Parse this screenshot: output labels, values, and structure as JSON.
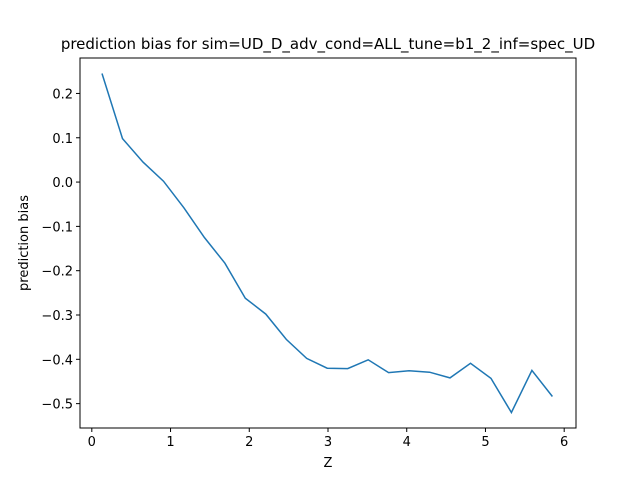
{
  "chart_data": {
    "type": "line",
    "title": "prediction bias for sim=UD_D_adv_cond=ALL_tune=b1_2_inf=spec_UD",
    "xlabel": "Z",
    "ylabel": "prediction bias",
    "xlim": [
      -0.15,
      6.15
    ],
    "ylim": [
      -0.555,
      0.28
    ],
    "xticks": [
      0,
      1,
      2,
      3,
      4,
      5,
      6
    ],
    "xtick_labels": [
      "0",
      "1",
      "2",
      "3",
      "4",
      "5",
      "6"
    ],
    "yticks": [
      0.2,
      0.1,
      0.0,
      -0.1,
      -0.2,
      -0.3,
      -0.4,
      -0.5
    ],
    "ytick_labels": [
      "0.2",
      "0.1",
      "0.0",
      "−0.1",
      "−0.2",
      "−0.3",
      "−0.4",
      "−0.5"
    ],
    "grid": false,
    "line_color": "#1f77b4",
    "series": [
      {
        "x": [
          0.13,
          0.39,
          0.65,
          0.91,
          1.17,
          1.43,
          1.69,
          1.95,
          2.21,
          2.47,
          2.73,
          2.99,
          3.25,
          3.51,
          3.77,
          4.03,
          4.29,
          4.55,
          4.81,
          5.07,
          5.33,
          5.59,
          5.85
        ],
        "values": [
          0.245,
          0.098,
          0.045,
          0.002,
          -0.058,
          -0.125,
          -0.183,
          -0.262,
          -0.298,
          -0.355,
          -0.398,
          -0.42,
          -0.421,
          -0.401,
          -0.43,
          -0.426,
          -0.429,
          -0.442,
          -0.409,
          -0.443,
          -0.52,
          -0.425,
          -0.484
        ]
      }
    ]
  }
}
